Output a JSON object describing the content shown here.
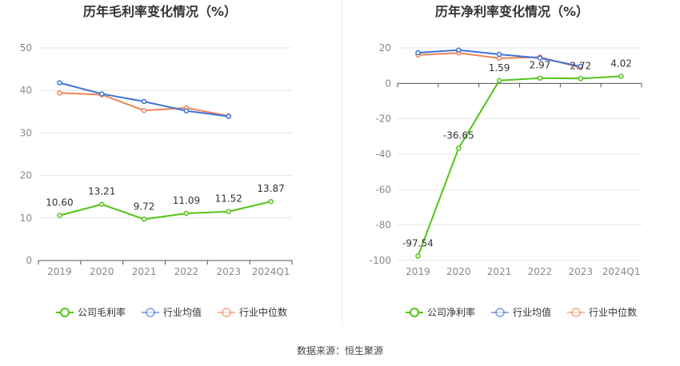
{
  "source_text": "数据来源：恒生聚源",
  "chart_data": [
    {
      "type": "line",
      "title": "历年毛利率变化情况（%）",
      "xlabel": "",
      "ylabel": "",
      "categories": [
        "2019",
        "2020",
        "2021",
        "2022",
        "2023",
        "2024Q1"
      ],
      "ylim": [
        0,
        50
      ],
      "yticks": [
        0,
        10,
        20,
        30,
        40,
        50
      ],
      "grid": true,
      "legend_position": "bottom",
      "series": [
        {
          "name": "公司毛利率",
          "color": "#52c41a",
          "values": [
            10.6,
            13.21,
            9.72,
            11.09,
            11.52,
            13.87
          ],
          "labels": [
            "10.60",
            "13.21",
            "9.72",
            "11.09",
            "11.52",
            "13.87"
          ]
        },
        {
          "name": "行业均值",
          "color": "#3f72d9",
          "values": [
            41.8,
            39.2,
            37.4,
            35.2,
            33.9,
            null
          ],
          "labels": []
        },
        {
          "name": "行业中位数",
          "color": "#ee8355",
          "values": [
            39.4,
            39.0,
            35.3,
            35.9,
            34.0,
            null
          ],
          "labels": []
        }
      ]
    },
    {
      "type": "line",
      "title": "历年净利率变化情况（%）",
      "xlabel": "",
      "ylabel": "",
      "categories": [
        "2019",
        "2020",
        "2021",
        "2022",
        "2023",
        "2024Q1"
      ],
      "ylim": [
        -100,
        20
      ],
      "yticks": [
        -100,
        -80,
        -60,
        -40,
        -20,
        0,
        20
      ],
      "grid": true,
      "legend_position": "bottom",
      "series": [
        {
          "name": "公司净利率",
          "color": "#52c41a",
          "values": [
            -97.54,
            -36.65,
            1.59,
            2.97,
            2.72,
            4.02
          ],
          "labels": [
            "-97.54",
            "-36.65",
            "1.59",
            "2.97",
            "2.72",
            "4.02"
          ]
        },
        {
          "name": "行业均值",
          "color": "#3f72d9",
          "values": [
            17.3,
            18.8,
            16.4,
            14.3,
            9.6,
            null
          ],
          "labels": []
        },
        {
          "name": "行业中位数",
          "color": "#ee8355",
          "values": [
            16.0,
            17.2,
            14.2,
            14.8,
            8.9,
            null
          ],
          "labels": []
        }
      ]
    }
  ]
}
